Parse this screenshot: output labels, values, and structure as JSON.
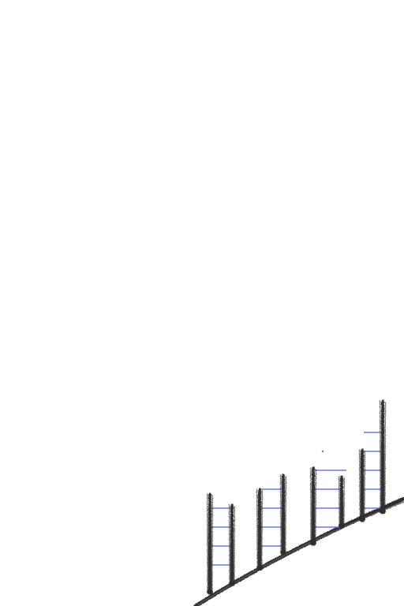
{
  "sketch": {
    "colors": {
      "background": "#ffffff",
      "ink": "#2e2e2e",
      "rung": "#6f78e6"
    },
    "posts": [
      {
        "name": "post-1a",
        "rungs": 0
      },
      {
        "name": "post-1b",
        "rungs": 0
      },
      {
        "name": "post-2a",
        "rungs": 0
      },
      {
        "name": "post-2b",
        "rungs": 0
      },
      {
        "name": "post-3a",
        "rungs": 0
      },
      {
        "name": "post-3b",
        "rungs": 0
      },
      {
        "name": "post-4a",
        "rungs": 0
      },
      {
        "name": "post-4b",
        "rungs": 0
      }
    ],
    "ladders": [
      {
        "name": "ladder-1",
        "rung_count": 4
      },
      {
        "name": "ladder-2",
        "rung_count": 4
      },
      {
        "name": "ladder-3",
        "rung_count": 4
      },
      {
        "name": "ladder-4",
        "rung_count": 5
      }
    ]
  }
}
